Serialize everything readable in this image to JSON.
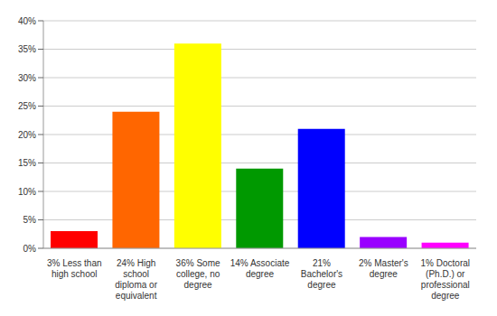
{
  "chart_data": {
    "type": "bar",
    "categories": [
      "3% Less than high school",
      "24% High school diploma or equivalent",
      "36% Some college, no degree",
      "14% Associate degree",
      "21% Bachelor's degree",
      "2% Master's degree",
      "1% Doctoral (Ph.D.) or professional degree"
    ],
    "values": [
      3,
      24,
      36,
      14,
      21,
      2,
      1
    ],
    "colors": [
      "#ff0000",
      "#ff6600",
      "#ffff00",
      "#009900",
      "#0000ff",
      "#9900ff",
      "#ff00ff"
    ],
    "ylim": [
      0,
      40
    ],
    "yticks": [
      {
        "value": 0,
        "label": "0%"
      },
      {
        "value": 5,
        "label": "5%"
      },
      {
        "value": 10,
        "label": "10%"
      },
      {
        "value": 15,
        "label": "15%"
      },
      {
        "value": 20,
        "label": "20%"
      },
      {
        "value": 25,
        "label": "25%"
      },
      {
        "value": 30,
        "label": "30%"
      },
      {
        "value": 35,
        "label": "35%"
      },
      {
        "value": 40,
        "label": "40%"
      }
    ],
    "grid": true
  }
}
